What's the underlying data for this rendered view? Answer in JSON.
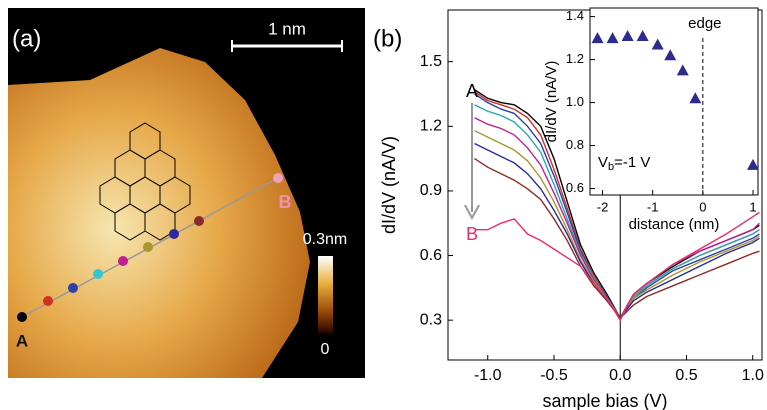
{
  "panel_a": {
    "label": "(a)",
    "scale_bar": "1 nm",
    "colorbar_max": "0.3nm",
    "colorbar_min": "0",
    "point_a": "A",
    "point_b": "B"
  },
  "chart_data": [
    {
      "type": "line",
      "panel_label": "(b)",
      "x_label": "sample bias (V)",
      "y_label": "dI/dV (nA/V)",
      "annotations": {
        "start": "A",
        "end": "B"
      },
      "xlim": [
        -1.3,
        1.07
      ],
      "ylim": [
        0.115,
        1.74
      ],
      "xticks": [
        {
          "value": -1,
          "label": "-1.0"
        },
        -0.5,
        {
          "value": 0,
          "label": "0.0"
        },
        0.5,
        {
          "value": 1,
          "label": "1.0"
        }
      ],
      "yticks": [
        0.3,
        0.6,
        0.9,
        1.2,
        1.5
      ],
      "x": [
        -1.1,
        -1.0,
        -0.9,
        -0.8,
        -0.7,
        -0.6,
        -0.5,
        -0.4,
        -0.3,
        -0.2,
        -0.1,
        0,
        0.1,
        0.2,
        0.4,
        0.6,
        0.8,
        1.0,
        1.05
      ],
      "series": [
        {
          "color": "#000000",
          "values": [
            1.37,
            1.33,
            1.31,
            1.3,
            1.26,
            1.2,
            1.05,
            0.85,
            0.65,
            0.52,
            0.42,
            0.31,
            0.42,
            0.47,
            0.55,
            0.62,
            0.67,
            0.72,
            0.74
          ]
        },
        {
          "color": "#d03028",
          "values": [
            1.36,
            1.32,
            1.3,
            1.28,
            1.24,
            1.16,
            1.0,
            0.82,
            0.63,
            0.51,
            0.41,
            0.31,
            0.41,
            0.46,
            0.54,
            0.6,
            0.65,
            0.7,
            0.72
          ]
        },
        {
          "color": "#3040a8",
          "values": [
            1.35,
            1.31,
            1.28,
            1.26,
            1.2,
            1.12,
            0.97,
            0.8,
            0.62,
            0.5,
            0.41,
            0.31,
            0.4,
            0.45,
            0.53,
            0.58,
            0.63,
            0.68,
            0.7
          ]
        },
        {
          "color": "#30a8b0",
          "values": [
            1.3,
            1.27,
            1.25,
            1.22,
            1.16,
            1.08,
            0.93,
            0.77,
            0.61,
            0.5,
            0.4,
            0.31,
            0.41,
            0.46,
            0.54,
            0.6,
            0.65,
            0.7,
            0.72
          ]
        },
        {
          "color": "#c02090",
          "values": [
            1.24,
            1.21,
            1.19,
            1.16,
            1.1,
            1.02,
            0.89,
            0.75,
            0.6,
            0.49,
            0.4,
            0.31,
            0.42,
            0.47,
            0.56,
            0.62,
            0.67,
            0.72,
            0.75
          ]
        },
        {
          "color": "#a89830",
          "values": [
            1.18,
            1.15,
            1.12,
            1.09,
            1.04,
            0.96,
            0.85,
            0.72,
            0.58,
            0.48,
            0.4,
            0.31,
            0.4,
            0.44,
            0.51,
            0.57,
            0.62,
            0.67,
            0.69
          ]
        },
        {
          "color": "#2a2a9a",
          "values": [
            1.12,
            1.09,
            1.06,
            1.03,
            0.98,
            0.91,
            0.81,
            0.7,
            0.57,
            0.47,
            0.39,
            0.31,
            0.39,
            0.43,
            0.49,
            0.55,
            0.61,
            0.66,
            0.68
          ]
        },
        {
          "color": "#8b2a2a",
          "values": [
            1.05,
            1.01,
            0.98,
            0.95,
            0.91,
            0.86,
            0.77,
            0.67,
            0.55,
            0.46,
            0.39,
            0.31,
            0.37,
            0.41,
            0.46,
            0.51,
            0.56,
            0.61,
            0.62
          ]
        },
        {
          "color": "#e8306a",
          "values": [
            0.72,
            0.72,
            0.75,
            0.77,
            0.7,
            0.67,
            0.63,
            0.59,
            0.55,
            0.47,
            0.4,
            0.3,
            0.42,
            0.47,
            0.56,
            0.63,
            0.7,
            0.78,
            0.8
          ]
        }
      ]
    },
    {
      "type": "scatter",
      "x_label": "distance (nm)",
      "y_label": "dI/dV (nA/V)",
      "color": "#2e2a8e",
      "annotations": {
        "edge": "edge",
        "vb_main": "V",
        "vb_sub": "b",
        "vb_rest": "=-1 V"
      },
      "xlim": [
        -2.25,
        1.1
      ],
      "ylim": [
        0.57,
        1.44
      ],
      "xticks": [
        -2,
        -1,
        0,
        1
      ],
      "yticks": [
        0.6,
        0.8,
        {
          "value": 1,
          "label": "1.0"
        },
        1.2,
        1.4
      ],
      "x": [
        -2.1,
        -1.8,
        -1.5,
        -1.2,
        -0.9,
        -0.65,
        -0.4,
        -0.15,
        1.0
      ],
      "values": [
        1.3,
        1.3,
        1.31,
        1.31,
        1.27,
        1.22,
        1.15,
        1.02,
        0.71
      ]
    }
  ]
}
